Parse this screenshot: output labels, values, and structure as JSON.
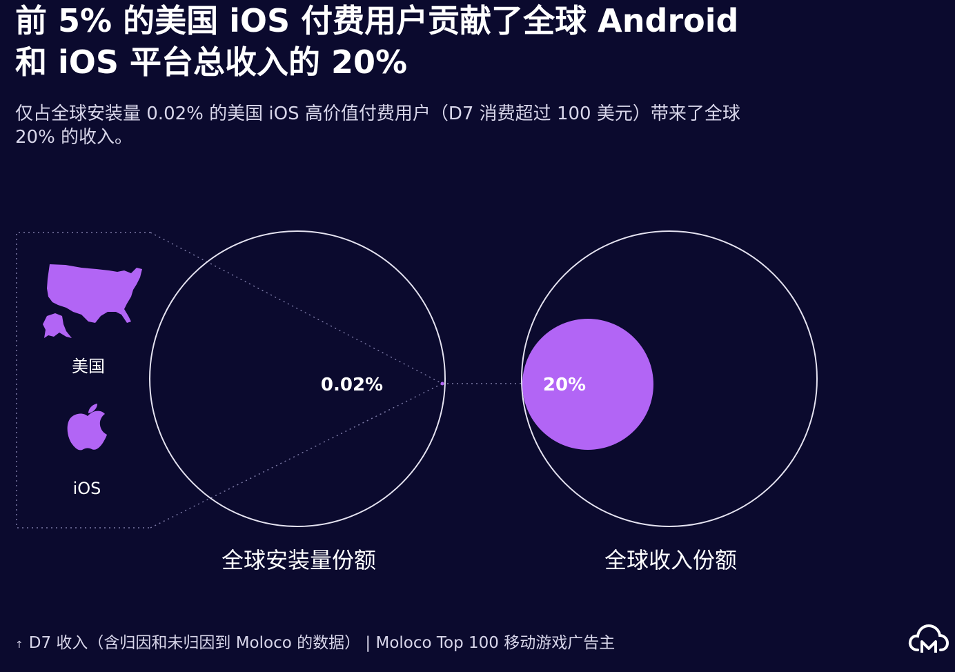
{
  "title_line1": "前 5% 的美国 iOS 付费用户贡献了全球 Android",
  "title_line2": "和 iOS 平台总收入的 20%",
  "subtitle_line1": "仅占全球安装量 0.02% 的美国 iOS 高价值付费用户（D7 消费超过 100 美元）带来了全球",
  "subtitle_line2": "20% 的收入。",
  "panel": {
    "country_label": "美国",
    "platform_label": "iOS"
  },
  "install_circle": {
    "value_label": "0.02%",
    "caption": "全球安装量份额"
  },
  "revenue_circle": {
    "value_label": "20%",
    "caption": "全球收入份额"
  },
  "footer": {
    "arrow": "↑",
    "text": "D7 收入（含归因和未归因到 Moloco 的数据） | Moloco Top 100 移动游戏广告主"
  },
  "colors": {
    "background": "#0b0a2e",
    "accent": "#b265f5",
    "circle_stroke": "#e4e2f0"
  },
  "icons": [
    "usa-map-icon",
    "apple-icon",
    "moloco-logo-icon"
  ]
}
